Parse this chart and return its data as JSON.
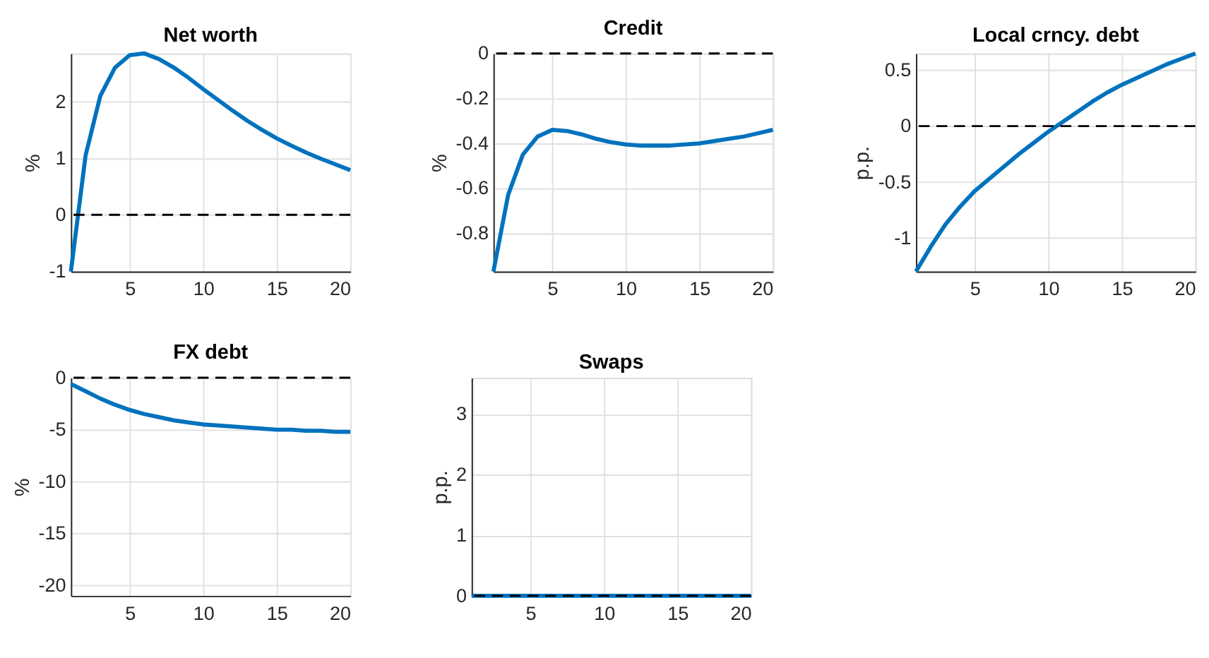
{
  "chart_data": [
    {
      "type": "line",
      "title": "Net worth",
      "ylabel": "%",
      "x": [
        1,
        2,
        3,
        4,
        5,
        6,
        7,
        8,
        9,
        10,
        11,
        12,
        13,
        14,
        15,
        16,
        17,
        18,
        19,
        20
      ],
      "xlim": [
        1,
        20
      ],
      "xticks": [
        5,
        10,
        15,
        20
      ],
      "ylim": [
        -1,
        2.85
      ],
      "yticks": [
        -1,
        0,
        1,
        2
      ],
      "grid": true,
      "line_style": "solid",
      "series": [
        {
          "color": "#0072bd",
          "values": [
            -1,
            1.05,
            2.1,
            2.6,
            2.82,
            2.85,
            2.75,
            2.6,
            2.42,
            2.22,
            2.03,
            1.84,
            1.66,
            1.5,
            1.35,
            1.22,
            1.1,
            0.99,
            0.89,
            0.79
          ]
        }
      ],
      "ref_lines": [
        {
          "axis": "y",
          "value": 0,
          "color": "#000000",
          "line_style": "dashed"
        }
      ]
    },
    {
      "type": "line",
      "title": "Credit",
      "ylabel": "%",
      "x": [
        1,
        2,
        3,
        4,
        5,
        6,
        7,
        8,
        9,
        10,
        11,
        12,
        13,
        14,
        15,
        16,
        17,
        18,
        19,
        20
      ],
      "xlim": [
        1,
        20
      ],
      "xticks": [
        5,
        10,
        15,
        20
      ],
      "ylim": [
        -0.97,
        0
      ],
      "yticks": [
        -0.8,
        -0.6,
        -0.4,
        -0.2,
        0
      ],
      "grid": true,
      "line_style": "solid",
      "series": [
        {
          "color": "#0072bd",
          "values": [
            -0.97,
            -0.63,
            -0.45,
            -0.37,
            -0.34,
            -0.345,
            -0.36,
            -0.38,
            -0.395,
            -0.405,
            -0.41,
            -0.41,
            -0.41,
            -0.405,
            -0.4,
            -0.39,
            -0.38,
            -0.37,
            -0.355,
            -0.34
          ]
        }
      ],
      "ref_lines": [
        {
          "axis": "y",
          "value": 0,
          "color": "#000000",
          "line_style": "dashed"
        }
      ]
    },
    {
      "type": "line",
      "title": "Local crncy. debt",
      "ylabel": "p.p.",
      "x": [
        1,
        2,
        3,
        4,
        5,
        6,
        7,
        8,
        9,
        10,
        11,
        12,
        13,
        14,
        15,
        16,
        17,
        18,
        19,
        20
      ],
      "xlim": [
        1,
        20
      ],
      "xticks": [
        5,
        10,
        15,
        20
      ],
      "ylim": [
        -1.3,
        0.65
      ],
      "yticks": [
        -1,
        -0.5,
        0,
        0.5
      ],
      "grid": true,
      "line_style": "solid",
      "series": [
        {
          "color": "#0072bd",
          "values": [
            -1.3,
            -1.08,
            -0.88,
            -0.72,
            -0.58,
            -0.47,
            -0.36,
            -0.25,
            -0.15,
            -0.05,
            0.04,
            0.13,
            0.22,
            0.3,
            0.37,
            0.43,
            0.49,
            0.55,
            0.6,
            0.65
          ]
        }
      ],
      "ref_lines": [
        {
          "axis": "y",
          "value": 0,
          "color": "#000000",
          "line_style": "dashed"
        }
      ]
    },
    {
      "type": "line",
      "title": "FX debt",
      "ylabel": "%",
      "x": [
        1,
        2,
        3,
        4,
        5,
        6,
        7,
        8,
        9,
        10,
        11,
        12,
        13,
        14,
        15,
        16,
        17,
        18,
        19,
        20
      ],
      "xlim": [
        1,
        20
      ],
      "xticks": [
        5,
        10,
        15,
        20
      ],
      "ylim": [
        -21,
        0
      ],
      "yticks": [
        -20,
        -15,
        -10,
        -5,
        0
      ],
      "grid": true,
      "line_style": "solid",
      "series": [
        {
          "color": "#0072bd",
          "values": [
            -0.6,
            -1.3,
            -2,
            -2.6,
            -3.1,
            -3.5,
            -3.8,
            -4.1,
            -4.3,
            -4.5,
            -4.6,
            -4.7,
            -4.8,
            -4.9,
            -5.0,
            -5.0,
            -5.1,
            -5.1,
            -5.2,
            -5.2
          ]
        }
      ],
      "ref_lines": [
        {
          "axis": "y",
          "value": 0,
          "color": "#000000",
          "line_style": "dashed"
        }
      ]
    },
    {
      "type": "line",
      "title": "Swaps",
      "ylabel": "p.p.",
      "x": [
        1,
        2,
        3,
        4,
        5,
        6,
        7,
        8,
        9,
        10,
        11,
        12,
        13,
        14,
        15,
        16,
        17,
        18,
        19,
        20
      ],
      "xlim": [
        1,
        20
      ],
      "xticks": [
        5,
        10,
        15,
        20
      ],
      "ylim": [
        0,
        3.6
      ],
      "yticks": [
        0,
        1,
        2,
        3
      ],
      "grid": true,
      "line_style": "solid",
      "series": [
        {
          "color": "#0072bd",
          "values": [
            0,
            0,
            0,
            0,
            0,
            0,
            0,
            0,
            0,
            0,
            0,
            0,
            0,
            0,
            0,
            0,
            0,
            0,
            0,
            0
          ]
        }
      ],
      "ref_lines": [
        {
          "axis": "y",
          "value": 0,
          "color": "#000000",
          "line_style": "dashed"
        }
      ]
    }
  ]
}
